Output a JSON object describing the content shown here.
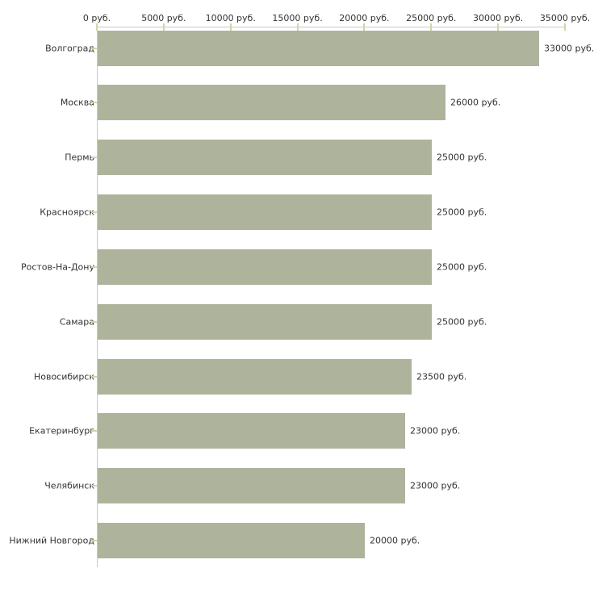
{
  "chart_data": {
    "type": "bar",
    "orientation": "horizontal",
    "title": "",
    "xlabel": "",
    "ylabel": "",
    "xlim": [
      0,
      35000
    ],
    "grid": false,
    "legend_position": "none",
    "x_ticks": [
      0,
      5000,
      10000,
      15000,
      20000,
      25000,
      30000,
      35000
    ],
    "x_tick_labels": [
      "0 руб.",
      "5000 руб.",
      "10000 руб.",
      "15000 руб.",
      "20000 руб.",
      "25000 руб.",
      "30000 руб.",
      "35000 руб."
    ],
    "categories": [
      "Волгоград",
      "Москва",
      "Пермь",
      "Красноярск",
      "Ростов-На-Дону",
      "Самара",
      "Новосибирск",
      "Екатеринбург",
      "Челябинск",
      "Нижний Новгород"
    ],
    "values": [
      33000,
      26000,
      25000,
      25000,
      25000,
      25000,
      23500,
      23000,
      23000,
      20000
    ],
    "value_labels": [
      "33000 руб.",
      "26000 руб.",
      "25000 руб.",
      "25000 руб.",
      "25000 руб.",
      "25000 руб.",
      "23500 руб.",
      "23000 руб.",
      "23000 руб.",
      "20000 руб."
    ],
    "colors": {
      "bar": "#adb49b",
      "tick": "#d5d3a6",
      "axis": "#c9c9c9",
      "text": "#333333",
      "background": "#ffffff"
    }
  }
}
